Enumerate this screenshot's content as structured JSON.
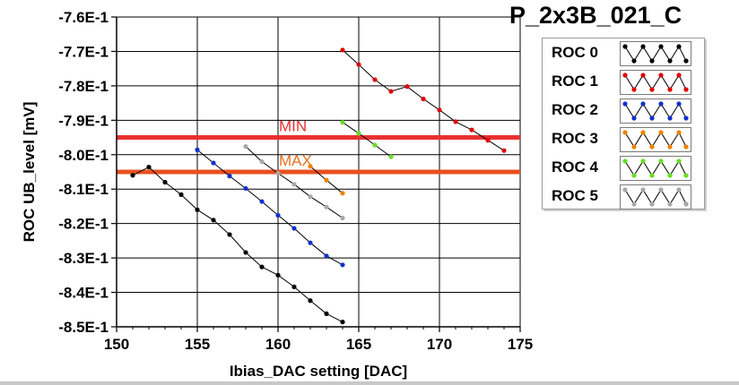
{
  "title": "P_2x3B_021_C",
  "chart_data": {
    "type": "line",
    "xlabel": "Ibias_DAC setting [DAC]",
    "ylabel": "ROC UB_level [mV]",
    "xlim": [
      150,
      175
    ],
    "ylim": [
      -0.85,
      -0.76
    ],
    "x_ticks": [
      150,
      155,
      160,
      165,
      170,
      175
    ],
    "x_tick_labels": [
      "150",
      "155",
      "160",
      "165",
      "170",
      "175"
    ],
    "y_ticks": [
      -0.76,
      -0.77,
      -0.78,
      -0.79,
      -0.8,
      -0.81,
      -0.82,
      -0.83,
      -0.84,
      -0.85
    ],
    "y_tick_labels": [
      "-7.6E-1",
      "-7.7E-1",
      "-7.8E-1",
      "-7.9E-1",
      "-8.0E-1",
      "-8.1E-1",
      "-8.2E-1",
      "-8.3E-1",
      "-8.4E-1",
      "-8.5E-1"
    ],
    "grid": true,
    "legend_position": "right",
    "series": [
      {
        "name": "ROC 0",
        "color": "#000000",
        "x": [
          151,
          152,
          153,
          154,
          155,
          156,
          157,
          158,
          159,
          160,
          161,
          162,
          163,
          164
        ],
        "y": [
          -0.806,
          -0.8036,
          -0.808,
          -0.8116,
          -0.816,
          -0.819,
          -0.8232,
          -0.8284,
          -0.8326,
          -0.835,
          -0.8384,
          -0.8424,
          -0.8462,
          -0.8486
        ]
      },
      {
        "name": "ROC 1",
        "color": "#e00000",
        "x": [
          164,
          165,
          166,
          167,
          168,
          169,
          170,
          171,
          172,
          173,
          174
        ],
        "y": [
          -0.7696,
          -0.7738,
          -0.7782,
          -0.7816,
          -0.7802,
          -0.7838,
          -0.787,
          -0.7904,
          -0.7928,
          -0.7958,
          -0.7988
        ]
      },
      {
        "name": "ROC 2",
        "color": "#1030d0",
        "x": [
          155,
          156,
          157,
          158,
          159,
          160,
          161,
          162,
          163,
          164
        ],
        "y": [
          -0.7986,
          -0.8024,
          -0.8062,
          -0.8098,
          -0.8136,
          -0.8176,
          -0.8214,
          -0.8256,
          -0.8294,
          -0.832
        ]
      },
      {
        "name": "ROC 3",
        "color": "#f08000",
        "x": [
          162,
          163,
          164
        ],
        "y": [
          -0.8034,
          -0.8074,
          -0.8112
        ]
      },
      {
        "name": "ROC 4",
        "color": "#66dd22",
        "x": [
          164,
          165,
          166,
          167
        ],
        "y": [
          -0.7906,
          -0.7938,
          -0.7972,
          -0.8006
        ]
      },
      {
        "name": "ROC 5",
        "color": "#a8a8a8",
        "x": [
          158,
          159,
          160,
          161,
          162,
          163,
          164
        ],
        "y": [
          -0.7976,
          -0.802,
          -0.8054,
          -0.8086,
          -0.8122,
          -0.8152,
          -0.8184
        ]
      }
    ],
    "annotations": [
      {
        "text": "MIN",
        "y": -0.795,
        "color": "#e83030",
        "text_color": "#e83030"
      },
      {
        "text": "MAX",
        "y": -0.805,
        "color": "#e85020",
        "text_color": "#e87020"
      }
    ]
  }
}
